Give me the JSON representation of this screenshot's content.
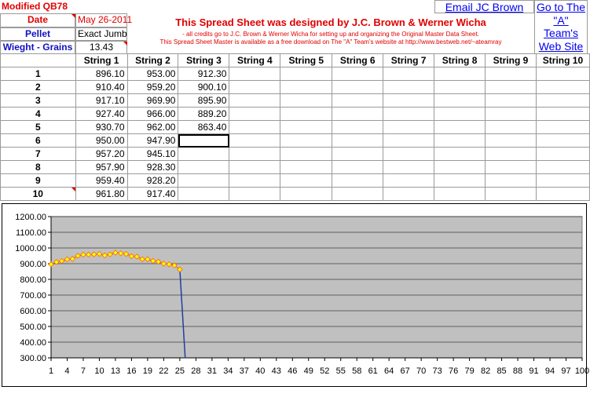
{
  "title": "Modified QB78",
  "labels": {
    "date": "Date",
    "pellet": "Pellet",
    "weight": "Wieght - Grains"
  },
  "values": {
    "date": "May 26-2011",
    "pellet": "Exact Jumb",
    "weight": "13.43"
  },
  "banner": {
    "headline": "This Spread Sheet was designed by J.C. Brown & Werner Wicha",
    "line2": "- all credits go to J.C. Brown & Werner Wicha for setting up and organizing the Original Master Data Sheet.",
    "line3": "This Spread Sheet Master is available as a free download on The \"A\" Team's website at  http://www.bestweb.net/~ateamray"
  },
  "links": {
    "email": "Email JC Brown",
    "goto_1": "Go to The",
    "goto_2": "\"A\"",
    "goto_3": "Team's",
    "goto_4": "Web Site"
  },
  "table": {
    "columns": [
      "String 1",
      "String 2",
      "String 3",
      "String 4",
      "String 5",
      "String 6",
      "String 7",
      "String 8",
      "String 9",
      "String 10"
    ],
    "rows": [
      {
        "n": "1",
        "cells": [
          "896.10",
          "953.00",
          "912.30"
        ]
      },
      {
        "n": "2",
        "cells": [
          "910.40",
          "959.20",
          "900.10"
        ]
      },
      {
        "n": "3",
        "cells": [
          "917.10",
          "969.90",
          "895.90"
        ]
      },
      {
        "n": "4",
        "cells": [
          "927.40",
          "966.00",
          "889.20"
        ]
      },
      {
        "n": "5",
        "cells": [
          "930.70",
          "962.00",
          "863.40"
        ]
      },
      {
        "n": "6",
        "cells": [
          "950.00",
          "947.90",
          ""
        ]
      },
      {
        "n": "7",
        "cells": [
          "957.20",
          "945.10",
          ""
        ]
      },
      {
        "n": "8",
        "cells": [
          "957.90",
          "928.30",
          ""
        ]
      },
      {
        "n": "9",
        "cells": [
          "959.40",
          "928.20",
          ""
        ]
      },
      {
        "n": "10",
        "cells": [
          "961.80",
          "917.40",
          ""
        ]
      }
    ]
  },
  "colors": {
    "plot_bg": "#c0c0c0",
    "marker_fill": "#ffff00",
    "marker_edge": "#ff6600",
    "drop_line": "#1f3fa0"
  },
  "chart_data": {
    "type": "line",
    "ylim": [
      300,
      1200
    ],
    "yticks": [
      "1200.00",
      "1100.00",
      "1000.00",
      "900.00",
      "800.00",
      "700.00",
      "600.00",
      "500.00",
      "400.00",
      "300.00"
    ],
    "xlim": [
      1,
      100
    ],
    "xticks": [
      "1",
      "4",
      "7",
      "10",
      "13",
      "16",
      "19",
      "22",
      "25",
      "28",
      "31",
      "34",
      "37",
      "40",
      "43",
      "46",
      "49",
      "52",
      "55",
      "58",
      "61",
      "64",
      "67",
      "70",
      "73",
      "76",
      "79",
      "82",
      "85",
      "88",
      "91",
      "94",
      "97",
      "100"
    ],
    "grid": "horizontal",
    "series": [
      {
        "x": [
          1,
          2,
          3,
          4,
          5,
          6,
          7,
          8,
          9,
          10,
          11,
          12,
          13,
          14,
          15,
          16,
          17,
          18,
          19,
          20,
          21,
          22,
          23,
          24,
          25,
          26
        ],
        "values": [
          896.1,
          910.4,
          917.1,
          927.4,
          930.7,
          950.0,
          957.2,
          957.9,
          959.4,
          961.8,
          953.0,
          959.2,
          969.9,
          966.0,
          962.0,
          947.9,
          945.1,
          928.3,
          928.2,
          917.4,
          912.3,
          900.1,
          895.9,
          889.2,
          863.4,
          0
        ]
      }
    ]
  }
}
